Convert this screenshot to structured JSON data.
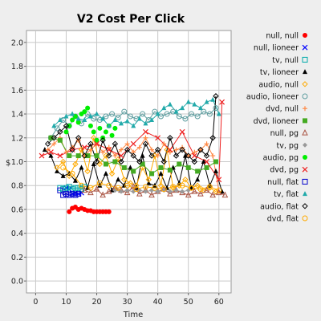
{
  "chart_data": {
    "type": "line",
    "title": "V2 Cost Per Click",
    "xlabel": "Time",
    "ylabel": "$",
    "xlim": [
      -3,
      64
    ],
    "ylim": [
      -0.1,
      2.1
    ],
    "xticks": [
      0,
      10,
      20,
      30,
      40,
      50,
      60
    ],
    "yticks": [
      0.0,
      0.2,
      0.4,
      0.6,
      0.8,
      1.0,
      1.2,
      1.4,
      1.6,
      1.8,
      2.0
    ],
    "grid": true,
    "legend_position": "right",
    "series": [
      {
        "name": "null, null",
        "color": "#ff0000",
        "marker": "circle-filled",
        "line": false,
        "x": [
          11,
          12,
          13,
          14,
          15,
          16,
          17,
          18,
          19,
          20,
          21,
          22,
          23,
          24
        ],
        "y": [
          0.58,
          0.61,
          0.62,
          0.6,
          0.61,
          0.6,
          0.59,
          0.59,
          0.58,
          0.58,
          0.58,
          0.58,
          0.58,
          0.58
        ]
      },
      {
        "name": "null, lioneer",
        "color": "#0000ff",
        "marker": "x",
        "line": true,
        "x": [
          10,
          11,
          12,
          13,
          14,
          15
        ],
        "y": [
          0.78,
          0.77,
          0.73,
          0.74,
          0.73,
          0.74
        ]
      },
      {
        "name": "tv, null",
        "color": "#00aaaa",
        "marker": "square",
        "line": true,
        "x": [
          8,
          9,
          10,
          11,
          12,
          13,
          14,
          15,
          16
        ],
        "y": [
          0.78,
          0.77,
          0.78,
          0.79,
          0.77,
          0.78,
          0.78,
          0.77,
          0.79
        ]
      },
      {
        "name": "tv, lioneer",
        "color": "#000000",
        "marker": "triangle-filled",
        "line": true,
        "x": [
          3,
          5,
          7,
          9,
          11,
          13,
          15,
          17,
          19,
          21,
          23,
          25,
          27,
          29,
          31,
          33,
          35,
          37,
          39,
          41,
          43,
          45,
          47,
          49,
          51,
          53,
          55,
          57,
          59,
          61
        ],
        "y": [
          1.1,
          1.05,
          0.92,
          0.88,
          0.9,
          0.84,
          0.95,
          0.78,
          0.98,
          0.8,
          0.9,
          0.76,
          0.85,
          0.8,
          0.95,
          0.78,
          1.05,
          0.82,
          0.8,
          0.9,
          0.78,
          0.95,
          0.82,
          1.05,
          0.78,
          0.85,
          1.0,
          0.8,
          0.92,
          0.75
        ]
      },
      {
        "name": "audio, null",
        "color": "#ffaa00",
        "marker": "diamond",
        "line": true,
        "x": [
          7,
          9,
          11,
          13,
          15,
          17,
          19,
          21,
          23,
          25,
          27,
          29,
          31,
          33,
          35,
          37,
          39,
          41,
          43,
          45,
          47,
          49,
          51,
          53,
          55,
          57,
          59
        ],
        "y": [
          0.95,
          1.0,
          0.88,
          0.98,
          1.1,
          0.92,
          1.2,
          0.98,
          1.05,
          0.9,
          1.02,
          0.85,
          0.82,
          0.8,
          0.95,
          0.85,
          1.05,
          0.8,
          1.1,
          0.78,
          0.8,
          0.85,
          0.78,
          0.8,
          0.76,
          0.78,
          0.75
        ]
      },
      {
        "name": "audio, lioneer",
        "color": "#5f9ea0",
        "marker": "circle",
        "line": true,
        "x": [
          5,
          7,
          9,
          11,
          13,
          15,
          17,
          19,
          21,
          23,
          25,
          27,
          29,
          31,
          33,
          35,
          37,
          39,
          41,
          43,
          45,
          47,
          49,
          51,
          53,
          55,
          57,
          59
        ],
        "y": [
          1.2,
          1.28,
          1.35,
          1.3,
          1.38,
          1.32,
          1.4,
          1.36,
          1.35,
          1.38,
          1.4,
          1.37,
          1.42,
          1.38,
          1.36,
          1.4,
          1.35,
          1.42,
          1.38,
          1.4,
          1.42,
          1.38,
          1.36,
          1.4,
          1.38,
          1.42,
          1.4,
          1.45
        ]
      },
      {
        "name": "dvd, null",
        "color": "#ff8844",
        "marker": "plus",
        "line": true,
        "x": [
          4,
          6,
          8,
          10,
          12,
          14,
          16,
          18,
          20,
          22,
          24,
          26,
          28,
          30,
          32,
          34,
          36,
          38,
          40,
          42,
          44,
          46,
          48,
          50,
          52,
          54,
          56,
          58,
          60
        ],
        "y": [
          1.1,
          1.15,
          1.2,
          1.08,
          1.12,
          1.18,
          1.05,
          1.1,
          1.15,
          1.08,
          1.12,
          1.05,
          1.1,
          1.15,
          1.08,
          1.12,
          1.2,
          1.1,
          1.05,
          1.15,
          1.08,
          1.1,
          1.12,
          1.05,
          1.08,
          1.1,
          1.15,
          1.05,
          0.75
        ]
      },
      {
        "name": "dvd, lioneer",
        "color": "#44aa22",
        "marker": "square-filled",
        "line": true,
        "x": [
          5,
          8,
          11,
          14,
          17,
          20,
          23,
          26,
          29,
          32,
          35,
          38,
          41,
          44,
          47,
          50,
          53,
          56,
          59
        ],
        "y": [
          1.2,
          1.18,
          1.05,
          1.05,
          1.05,
          1.05,
          0.98,
          1.0,
          0.95,
          0.92,
          0.98,
          0.9,
          0.95,
          0.93,
          0.98,
          0.95,
          0.92,
          0.95,
          1.0
        ]
      },
      {
        "name": "null, pg",
        "color": "#aa5544",
        "marker": "triangle",
        "line": true,
        "x": [
          16,
          18,
          20,
          22,
          24,
          26,
          28,
          30,
          32,
          34,
          36,
          38,
          40,
          42,
          44,
          46,
          48,
          50,
          52,
          54,
          56,
          58,
          60,
          62
        ],
        "y": [
          0.76,
          0.74,
          0.77,
          0.72,
          0.75,
          0.78,
          0.76,
          0.74,
          0.79,
          0.73,
          0.76,
          0.72,
          0.75,
          0.77,
          0.73,
          0.76,
          0.74,
          0.72,
          0.75,
          0.73,
          0.76,
          0.72,
          0.74,
          0.72
        ]
      },
      {
        "name": "tv, pg",
        "color": "#999999",
        "marker": "diamond-filled",
        "line": true,
        "x": [
          26,
          28,
          30,
          32,
          34,
          36,
          38,
          40,
          42,
          44,
          46,
          48,
          50
        ],
        "y": [
          0.76,
          0.75,
          0.76,
          0.75,
          0.76,
          0.75,
          0.76,
          0.75,
          0.76,
          0.75,
          0.76,
          0.75,
          0.76
        ]
      },
      {
        "name": "audio, pg",
        "color": "#00ee00",
        "marker": "circle-filled",
        "line": false,
        "x": [
          10,
          11,
          12,
          13,
          14,
          15,
          16,
          17,
          18,
          19,
          20,
          21,
          22,
          23,
          24,
          25,
          26
        ],
        "y": [
          1.25,
          1.3,
          1.35,
          1.38,
          1.33,
          1.4,
          1.42,
          1.45,
          1.3,
          1.25,
          1.18,
          1.28,
          1.2,
          1.25,
          1.3,
          1.22,
          1.28
        ]
      },
      {
        "name": "dvd, pg",
        "color": "#ee2222",
        "marker": "x",
        "line": true,
        "x": [
          2,
          5,
          8,
          12,
          16,
          20,
          24,
          28,
          32,
          36,
          40,
          44,
          48,
          52,
          56,
          60,
          61
        ],
        "y": [
          1.05,
          1.08,
          1.05,
          1.1,
          1.12,
          1.15,
          1.1,
          1.05,
          1.15,
          1.25,
          1.2,
          1.1,
          1.25,
          1.05,
          1.0,
          0.85,
          1.5
        ]
      },
      {
        "name": "null, flat",
        "color": "#0000cc",
        "marker": "square",
        "line": true,
        "x": [
          8,
          9,
          10,
          11,
          12,
          13,
          14
        ],
        "y": [
          0.76,
          0.72,
          0.73,
          0.72,
          0.73,
          0.72,
          0.73
        ]
      },
      {
        "name": "tv, flat",
        "color": "#22aaaa",
        "marker": "triangle-filled",
        "line": true,
        "x": [
          6,
          8,
          10,
          12,
          14,
          16,
          18,
          20,
          22,
          24,
          26,
          28,
          30,
          32,
          34,
          36,
          38,
          40,
          42,
          44,
          46,
          48,
          50,
          52,
          54,
          56,
          58,
          60
        ],
        "y": [
          1.3,
          1.35,
          1.38,
          1.4,
          1.36,
          1.35,
          1.38,
          1.4,
          1.36,
          1.3,
          1.35,
          1.32,
          1.34,
          1.3,
          1.36,
          1.32,
          1.35,
          1.4,
          1.45,
          1.48,
          1.42,
          1.45,
          1.5,
          1.48,
          1.45,
          1.5,
          1.52,
          1.4
        ]
      },
      {
        "name": "audio, flat",
        "color": "#000000",
        "marker": "diamond",
        "line": true,
        "x": [
          4,
          6,
          8,
          10,
          12,
          14,
          16,
          18,
          20,
          22,
          24,
          26,
          28,
          30,
          32,
          34,
          36,
          38,
          40,
          42,
          44,
          46,
          48,
          50,
          52,
          54,
          56,
          58,
          59
        ],
        "y": [
          1.15,
          1.2,
          1.25,
          1.3,
          1.1,
          1.2,
          1.05,
          1.15,
          1.0,
          1.18,
          1.05,
          1.15,
          1.0,
          1.1,
          1.05,
          1.0,
          1.15,
          1.05,
          1.1,
          1.0,
          1.2,
          1.05,
          1.1,
          1.05,
          1.0,
          1.1,
          1.05,
          1.2,
          1.55
        ]
      },
      {
        "name": "dvd, flat",
        "color": "#ffaa00",
        "marker": "circle",
        "line": true,
        "x": [
          9,
          12,
          15,
          18,
          21,
          24,
          27,
          30,
          33,
          36,
          39,
          42,
          45,
          48,
          51,
          54,
          57,
          60
        ],
        "y": [
          0.95,
          0.9,
          0.8,
          0.78,
          0.82,
          0.8,
          0.78,
          0.8,
          0.77,
          0.79,
          0.78,
          0.77,
          0.79,
          0.8,
          0.78,
          0.77,
          0.79,
          0.76
        ]
      }
    ]
  }
}
